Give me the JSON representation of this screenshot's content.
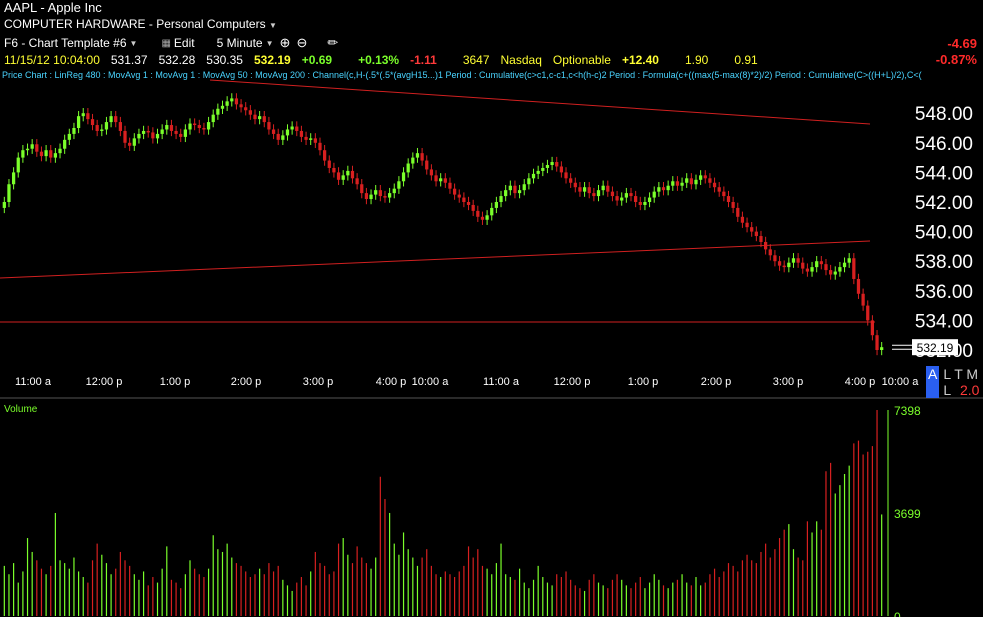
{
  "header": {
    "symbol_title": "AAPL - Apple Inc",
    "sector": "COMPUTER HARDWARE - Personal Computers",
    "template": "F6 - Chart Template #6",
    "edit_label": "Edit",
    "interval": "5 Minute"
  },
  "quote": {
    "datetime": "11/15/12 10:04:00",
    "open": "531.37",
    "high": "532.28",
    "low": "530.35",
    "last": "532.19",
    "bar_change": "+0.69",
    "bar_change_pct": "+0.13%",
    "day_change": "-1.11",
    "volume": "3647",
    "exchange": "Nasdaq",
    "optionable": "Optionable",
    "extra1": "+12.40",
    "extra2": "1.90",
    "extra3": "0.91",
    "net_change": "-4.69",
    "net_change_pct": "-0.87%"
  },
  "studies_line": "Price Chart : LinReg 480 : MovAvg 1 : MovAvg 1 : MovAvg 50 : MovAvg 200 : Channel(c,H-(.5*(.5*(avgH15...)1 Period : Cumulative(c>c1,c-c1,c<h(h-c)2 Period : Formula(c+((max(5-max(8)*2)/2) Period : Cumulative(C>((H+L)/2),C<(",
  "controls": {
    "a": "A",
    "rest": "L T M L",
    "line_width": "2.0"
  },
  "colors": {
    "up": "#7bff2b",
    "down": "#d82020",
    "trend": "#d02020",
    "bg": "#000000"
  },
  "chart_data": [
    {
      "type": "candlestick",
      "ylim": [
        530,
        550
      ],
      "y_ticks": [
        "548.00",
        "546.00",
        "544.00",
        "542.00",
        "540.00",
        "538.00",
        "536.00",
        "534.00",
        "532.00"
      ],
      "x_ticks": [
        "11:00 a",
        "12:00 p",
        "1:00 p",
        "2:00 p",
        "3:00 p",
        "4:00 p",
        "10:00 a",
        "11:00 a",
        "12:00 p",
        "1:00 p",
        "2:00 p",
        "3:00 p",
        "4:00 p",
        "10:00 a"
      ],
      "last_price_label": "532.19",
      "close": [
        542.0,
        543.2,
        544.0,
        545.0,
        545.5,
        545.6,
        545.9,
        545.4,
        545.1,
        545.5,
        545.0,
        545.3,
        545.6,
        546.2,
        546.6,
        547.0,
        547.8,
        548.0,
        547.6,
        547.2,
        546.8,
        546.9,
        547.4,
        547.8,
        547.4,
        546.8,
        546.0,
        545.8,
        546.3,
        546.6,
        546.8,
        546.7,
        546.3,
        546.6,
        546.9,
        547.2,
        546.8,
        546.6,
        546.4,
        546.9,
        547.3,
        547.2,
        547.0,
        546.9,
        547.4,
        547.9,
        548.3,
        548.5,
        548.8,
        549.0,
        548.6,
        548.4,
        548.2,
        547.9,
        547.6,
        547.8,
        547.4,
        546.9,
        546.6,
        546.2,
        546.5,
        546.9,
        547.1,
        546.8,
        546.4,
        546.2,
        546.3,
        546.0,
        545.5,
        544.8,
        544.3,
        544.0,
        543.5,
        543.8,
        544.1,
        543.6,
        543.2,
        542.6,
        542.2,
        542.5,
        542.8,
        542.4,
        542.3,
        542.6,
        542.9,
        543.4,
        544.0,
        544.6,
        545.0,
        545.3,
        544.8,
        544.2,
        543.8,
        543.4,
        543.6,
        543.3,
        542.9,
        542.5,
        542.3,
        542.0,
        541.8,
        541.4,
        541.0,
        540.8,
        541.1,
        541.6,
        542.0,
        542.4,
        542.8,
        543.1,
        542.6,
        542.8,
        543.2,
        543.6,
        543.9,
        544.1,
        544.3,
        544.5,
        544.7,
        544.4,
        544.0,
        543.6,
        543.3,
        543.0,
        542.7,
        543.0,
        542.6,
        542.4,
        542.8,
        543.1,
        542.7,
        542.4,
        542.1,
        542.3,
        542.6,
        542.4,
        542.0,
        541.8,
        542.0,
        542.3,
        542.7,
        543.0,
        542.8,
        543.1,
        543.4,
        543.1,
        543.3,
        543.6,
        543.2,
        543.5,
        543.8,
        543.6,
        543.3,
        543.0,
        542.7,
        542.4,
        542.0,
        541.6,
        541.0,
        540.6,
        540.3,
        540.0,
        539.7,
        539.3,
        538.8,
        538.4,
        538.0,
        537.7,
        537.6,
        537.9,
        538.2,
        537.9,
        537.5,
        537.3,
        537.6,
        538.0,
        537.8,
        537.4,
        537.1,
        537.3,
        537.6,
        537.9,
        538.2,
        536.8,
        535.8,
        535.0,
        534.0,
        533.0,
        532.0,
        532.19
      ],
      "volume_ylim": [
        0,
        7398
      ],
      "volume_ticks": [
        "7398",
        "3699",
        "0"
      ],
      "volume": [
        1800,
        1500,
        1900,
        1200,
        1600,
        2800,
        2300,
        2000,
        1700,
        1500,
        1800,
        3700,
        2000,
        1900,
        1700,
        2100,
        1600,
        1400,
        1200,
        2000,
        2600,
        2200,
        1900,
        1500,
        1700,
        2300,
        2000,
        1800,
        1500,
        1300,
        1600,
        1100,
        1400,
        1200,
        1700,
        2500,
        1300,
        1200,
        1000,
        1500,
        2000,
        1700,
        1500,
        1400,
        1700,
        2900,
        2400,
        2300,
        2600,
        2100,
        1900,
        1800,
        1600,
        1400,
        1500,
        1700,
        1500,
        1900,
        1600,
        1800,
        1300,
        1100,
        900,
        1200,
        1400,
        1100,
        1600,
        2300,
        1900,
        1800,
        1500,
        1600,
        2600,
        2800,
        2200,
        1900,
        2500,
        2100,
        1900,
        1700,
        2100,
        5000,
        4200,
        3700,
        2600,
        2200,
        3000,
        2400,
        2100,
        1800,
        2100,
        2400,
        1800,
        1500,
        1400,
        1600,
        1500,
        1400,
        1600,
        1800,
        2500,
        2100,
        2400,
        1800,
        1700,
        1500,
        1900,
        2600,
        1500,
        1400,
        1300,
        1700,
        1200,
        1000,
        1300,
        1800,
        1400,
        1200,
        1100,
        1500,
        1400,
        1600,
        1300,
        1100,
        1000,
        900,
        1300,
        1500,
        1200,
        1100,
        1000,
        1300,
        1500,
        1300,
        1100,
        1000,
        1200,
        1400,
        1000,
        1200,
        1500,
        1300,
        1100,
        1000,
        1200,
        1300,
        1500,
        1200,
        1100,
        1400,
        1100,
        1200,
        1500,
        1700,
        1400,
        1600,
        1900,
        1800,
        1600,
        2000,
        2200,
        2000,
        1900,
        2300,
        2600,
        2100,
        2400,
        2800,
        3100,
        3300,
        2400,
        2100,
        2000,
        3400,
        3000,
        3400,
        3100,
        5200,
        5500,
        4400,
        4700,
        5100,
        5400,
        6200,
        6300,
        5800,
        5900,
        6100,
        7398,
        3647
      ]
    }
  ]
}
